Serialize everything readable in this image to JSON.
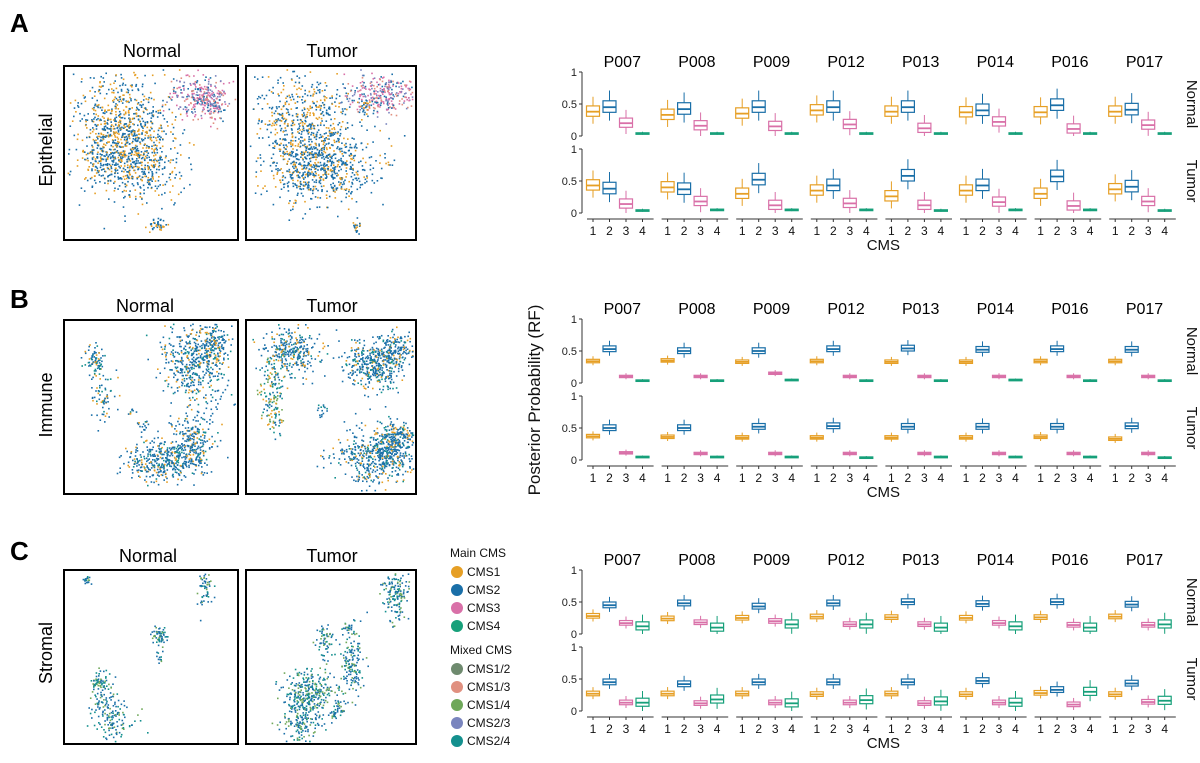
{
  "colors": {
    "CMS1": "#E69F25",
    "CMS2": "#1A6FA8",
    "CMS3": "#D970A8",
    "CMS4": "#17A07A",
    "CMS1/2": "#6E8A6E",
    "CMS1/3": "#E09080",
    "CMS1/4": "#6FA85A",
    "CMS2/3": "#7A85BE",
    "CMS2/4": "#14908E"
  },
  "panels": [
    {
      "label": "A",
      "row_label": "Epithelial",
      "umap_titles": [
        "Normal",
        "Tumor"
      ]
    },
    {
      "label": "B",
      "row_label": "Immune",
      "umap_titles": [
        "Normal",
        "Tumor"
      ]
    },
    {
      "label": "C",
      "row_label": "Stromal",
      "umap_titles": [
        "Normal",
        "Tumor"
      ]
    }
  ],
  "legend": {
    "main_title": "Main CMS",
    "main_items": [
      "CMS1",
      "CMS2",
      "CMS3",
      "CMS4"
    ],
    "mixed_title": "Mixed CMS",
    "mixed_items": [
      "CMS1/2",
      "CMS1/3",
      "CMS1/4",
      "CMS2/3",
      "CMS2/4"
    ]
  },
  "shared_y_label": "Posterior Probability (RF)",
  "chart_data": [
    {
      "type": "box",
      "panel": "A",
      "patients": [
        "P007",
        "P008",
        "P009",
        "P012",
        "P013",
        "P014",
        "P016",
        "P017"
      ],
      "conditions": [
        "Normal",
        "Tumor"
      ],
      "categories": [
        "1",
        "2",
        "3",
        "4"
      ],
      "xlabel": "CMS",
      "ylabel": "Posterior Probability (RF)",
      "ylim": [
        0,
        1
      ],
      "yticks": [
        0,
        0.5,
        1
      ],
      "medians": {
        "Normal": [
          [
            0.38,
            0.45,
            0.2,
            0.04
          ],
          [
            0.33,
            0.42,
            0.16,
            0.04
          ],
          [
            0.35,
            0.45,
            0.15,
            0.04
          ],
          [
            0.4,
            0.45,
            0.18,
            0.04
          ],
          [
            0.38,
            0.45,
            0.12,
            0.04
          ],
          [
            0.37,
            0.4,
            0.22,
            0.04
          ],
          [
            0.37,
            0.48,
            0.11,
            0.04
          ],
          [
            0.38,
            0.41,
            0.17,
            0.04
          ]
        ],
        "Tumor": [
          [
            0.43,
            0.38,
            0.14,
            0.04
          ],
          [
            0.4,
            0.37,
            0.18,
            0.05
          ],
          [
            0.3,
            0.52,
            0.12,
            0.05
          ],
          [
            0.35,
            0.43,
            0.15,
            0.05
          ],
          [
            0.26,
            0.58,
            0.12,
            0.04
          ],
          [
            0.35,
            0.43,
            0.17,
            0.05
          ],
          [
            0.3,
            0.57,
            0.11,
            0.05
          ],
          [
            0.37,
            0.41,
            0.18,
            0.04
          ]
        ]
      }
    },
    {
      "type": "box",
      "panel": "B",
      "patients": [
        "P007",
        "P008",
        "P009",
        "P012",
        "P013",
        "P014",
        "P016",
        "P017"
      ],
      "conditions": [
        "Normal",
        "Tumor"
      ],
      "categories": [
        "1",
        "2",
        "3",
        "4"
      ],
      "xlabel": "CMS",
      "ylabel": "Posterior Probability (RF)",
      "ylim": [
        0,
        1
      ],
      "yticks": [
        0,
        0.5,
        1
      ],
      "medians": {
        "Normal": [
          [
            0.34,
            0.53,
            0.1,
            0.04
          ],
          [
            0.35,
            0.5,
            0.1,
            0.04
          ],
          [
            0.33,
            0.5,
            0.15,
            0.05
          ],
          [
            0.34,
            0.53,
            0.1,
            0.04
          ],
          [
            0.33,
            0.54,
            0.1,
            0.04
          ],
          [
            0.33,
            0.52,
            0.1,
            0.05
          ],
          [
            0.34,
            0.53,
            0.1,
            0.04
          ],
          [
            0.34,
            0.52,
            0.1,
            0.04
          ]
        ],
        "Tumor": [
          [
            0.37,
            0.5,
            0.11,
            0.05
          ],
          [
            0.36,
            0.5,
            0.1,
            0.05
          ],
          [
            0.35,
            0.52,
            0.1,
            0.05
          ],
          [
            0.35,
            0.53,
            0.1,
            0.04
          ],
          [
            0.35,
            0.52,
            0.1,
            0.05
          ],
          [
            0.35,
            0.52,
            0.1,
            0.05
          ],
          [
            0.36,
            0.52,
            0.1,
            0.05
          ],
          [
            0.33,
            0.53,
            0.1,
            0.04
          ]
        ]
      }
    },
    {
      "type": "box",
      "panel": "C",
      "patients": [
        "P007",
        "P008",
        "P009",
        "P012",
        "P013",
        "P014",
        "P016",
        "P017"
      ],
      "conditions": [
        "Normal",
        "Tumor"
      ],
      "categories": [
        "1",
        "2",
        "3",
        "4"
      ],
      "xlabel": "CMS",
      "ylabel": "Posterior Probability (RF)",
      "ylim": [
        0,
        1
      ],
      "yticks": [
        0,
        0.5,
        1
      ],
      "medians": {
        "Normal": [
          [
            0.28,
            0.45,
            0.17,
            0.12
          ],
          [
            0.24,
            0.48,
            0.18,
            0.1
          ],
          [
            0.25,
            0.43,
            0.2,
            0.15
          ],
          [
            0.27,
            0.48,
            0.15,
            0.15
          ],
          [
            0.26,
            0.5,
            0.15,
            0.1
          ],
          [
            0.25,
            0.47,
            0.17,
            0.12
          ],
          [
            0.26,
            0.5,
            0.14,
            0.1
          ],
          [
            0.27,
            0.46,
            0.14,
            0.15
          ]
        ],
        "Tumor": [
          [
            0.27,
            0.45,
            0.13,
            0.13
          ],
          [
            0.27,
            0.42,
            0.12,
            0.18
          ],
          [
            0.27,
            0.45,
            0.13,
            0.12
          ],
          [
            0.26,
            0.45,
            0.13,
            0.17
          ],
          [
            0.27,
            0.45,
            0.12,
            0.15
          ],
          [
            0.26,
            0.47,
            0.13,
            0.13
          ],
          [
            0.28,
            0.33,
            0.1,
            0.3
          ],
          [
            0.26,
            0.43,
            0.14,
            0.16
          ]
        ]
      }
    }
  ]
}
